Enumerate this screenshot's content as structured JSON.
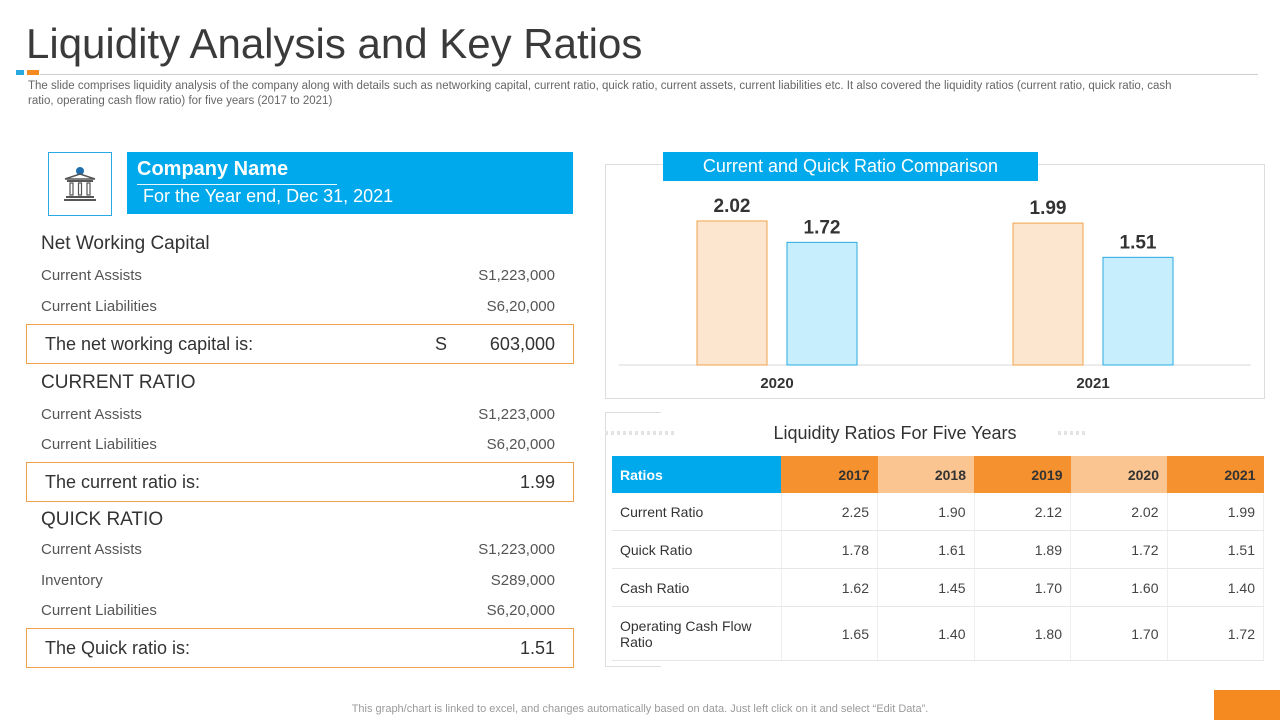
{
  "header": {
    "title": "Liquidity Analysis and Key Ratios",
    "subtitle": "The slide comprises liquidity analysis of the company along with details such as networking capital, current ratio, quick ratio, current assets, current liabilities etc. It also covered  the liquidity ratios (current ratio, quick ratio, cash ratio, operating cash flow ratio) for five  years (2017 to 2021)"
  },
  "company": {
    "icon": "bank-building-icon",
    "name": "Company Name",
    "year_end": "For the Year end, Dec 31, 2021"
  },
  "net_working_capital": {
    "heading": "Net Working Capital",
    "rows": [
      {
        "label": "Current Assists",
        "value": "S1,223,000"
      },
      {
        "label": "Current Liabilities",
        "value": "S6,20,000"
      }
    ],
    "result_label": "The net working capital is:",
    "result_currency": "S",
    "result_value": "603,000"
  },
  "current_ratio": {
    "heading": "CURRENT RATIO",
    "rows": [
      {
        "label": "Current Assists",
        "value": "S1,223,000"
      },
      {
        "label": "Current Liabilities",
        "value": "S6,20,000"
      }
    ],
    "result_label": "The current ratio is:",
    "result_value": "1.99"
  },
  "quick_ratio": {
    "heading": "QUICK RATIO",
    "rows": [
      {
        "label": "Current Assists",
        "value": "S1,223,000"
      },
      {
        "label": "Inventory",
        "value": "S289,000"
      },
      {
        "label": "Current Liabilities",
        "value": "S6,20,000"
      }
    ],
    "result_label": "The Quick ratio is:",
    "result_value": "1.51"
  },
  "chart_data": {
    "type": "bar",
    "title": "Current and Quick Ratio Comparison",
    "categories": [
      "2020",
      "2021"
    ],
    "series": [
      {
        "name": "Current Ratio",
        "values": [
          2.02,
          1.99
        ],
        "color": "#fde6d0",
        "stroke": "#f0a24a"
      },
      {
        "name": "Quick Ratio",
        "values": [
          1.72,
          1.51
        ],
        "color": "#c7eefc",
        "stroke": "#29a9e1"
      }
    ],
    "ylim": [
      0,
      2.3
    ],
    "xlabel": "",
    "ylabel": "",
    "grid": false
  },
  "liquidity_table": {
    "title": "Liquidity Ratios For Five Years",
    "headers": [
      "Ratios",
      "2017",
      "2018",
      "2019",
      "2020",
      "2021"
    ],
    "rows": [
      {
        "label": "Current Ratio",
        "values": [
          "2.25",
          "1.90",
          "2.12",
          "2.02",
          "1.99"
        ]
      },
      {
        "label": "Quick Ratio",
        "values": [
          "1.78",
          "1.61",
          "1.89",
          "1.72",
          "1.51"
        ]
      },
      {
        "label": "Cash Ratio",
        "values": [
          "1.62",
          "1.45",
          "1.70",
          "1.60",
          "1.40"
        ]
      },
      {
        "label": "Operating Cash Flow Ratio",
        "values": [
          "1.65",
          "1.40",
          "1.80",
          "1.70",
          "1.72"
        ]
      }
    ]
  },
  "footnote": "This graph/chart is linked to excel, and changes automatically based on data. Just left click on it and select “Edit Data”.",
  "colors": {
    "accent_blue": "#00a9ec",
    "accent_orange": "#f58a21"
  }
}
